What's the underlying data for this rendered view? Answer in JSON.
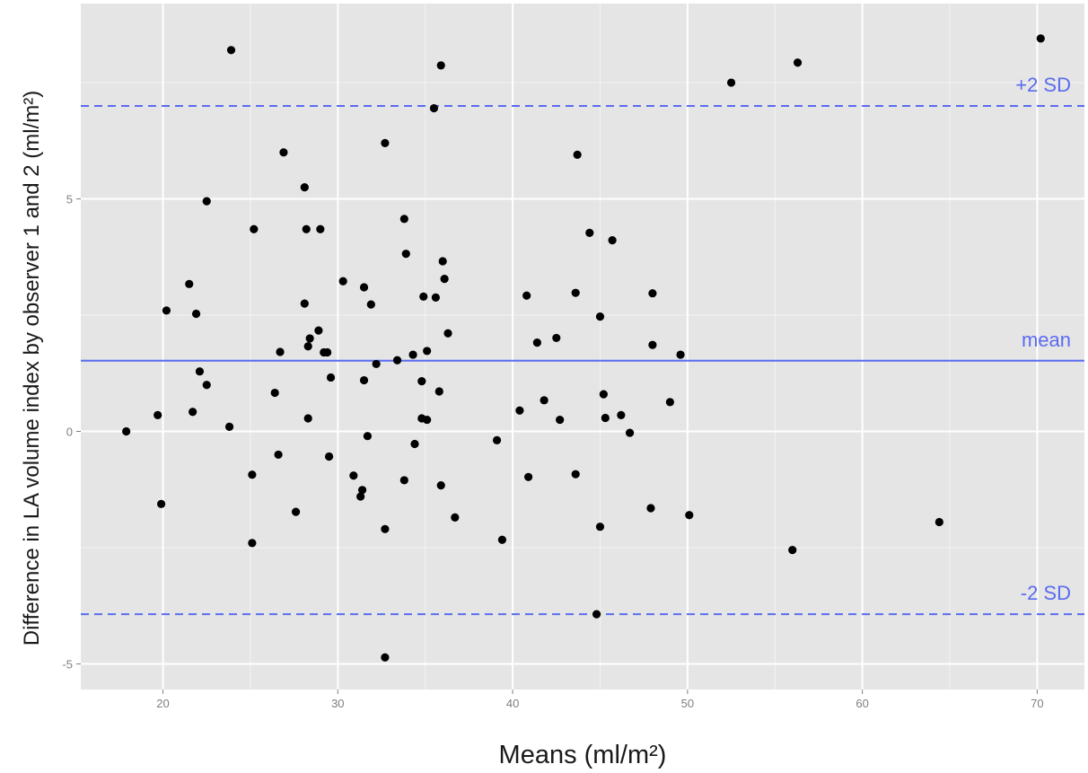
{
  "colors": {
    "panel": "#e5e5e5",
    "grid": "#ffffff",
    "points": "#000000",
    "reference": "#5a6cf0",
    "tick_text": "#7f7f7f",
    "axis_text": "#1a1a1a"
  },
  "chart_data": {
    "type": "scatter",
    "title": "",
    "xlabel": "Means (ml/m²)",
    "ylabel": "Difference in LA volume index by observer 1 and 2 (ml/m²)",
    "xlim": [
      15.3,
      72.7
    ],
    "ylim": [
      -5.55,
      9.2
    ],
    "x_ticks": [
      20,
      30,
      40,
      50,
      60,
      70
    ],
    "y_ticks": [
      5,
      0,
      -5
    ],
    "grid": true,
    "reference_lines": [
      {
        "label": "+2 SD",
        "value": 7.0,
        "style": "dashed"
      },
      {
        "label": "mean",
        "value": 1.52,
        "style": "solid"
      },
      {
        "label": "-2 SD",
        "value": -3.93,
        "style": "dashed"
      }
    ],
    "points": [
      [
        17.9,
        0.0
      ],
      [
        19.7,
        0.35
      ],
      [
        19.9,
        -1.56
      ],
      [
        20.2,
        2.6
      ],
      [
        21.5,
        3.17
      ],
      [
        21.7,
        0.42
      ],
      [
        21.9,
        2.53
      ],
      [
        22.1,
        1.29
      ],
      [
        22.5,
        1.0
      ],
      [
        22.5,
        4.95
      ],
      [
        23.8,
        0.1
      ],
      [
        23.9,
        8.2
      ],
      [
        25.1,
        -0.93
      ],
      [
        25.1,
        -2.4
      ],
      [
        25.2,
        4.35
      ],
      [
        26.4,
        0.83
      ],
      [
        26.6,
        -0.5
      ],
      [
        26.7,
        1.71
      ],
      [
        26.9,
        6.0
      ],
      [
        27.6,
        -1.73
      ],
      [
        28.1,
        5.25
      ],
      [
        28.1,
        2.75
      ],
      [
        28.2,
        4.35
      ],
      [
        28.3,
        0.28
      ],
      [
        28.3,
        1.83
      ],
      [
        28.4,
        2.0
      ],
      [
        28.9,
        2.17
      ],
      [
        29.0,
        4.35
      ],
      [
        29.2,
        1.7
      ],
      [
        29.4,
        1.7
      ],
      [
        29.5,
        -0.54
      ],
      [
        29.6,
        1.16
      ],
      [
        30.3,
        3.23
      ],
      [
        30.9,
        -0.95
      ],
      [
        31.3,
        -1.4
      ],
      [
        31.4,
        -1.26
      ],
      [
        31.5,
        3.1
      ],
      [
        31.5,
        1.1
      ],
      [
        31.7,
        -0.1
      ],
      [
        31.9,
        2.73
      ],
      [
        32.2,
        1.45
      ],
      [
        32.7,
        6.2
      ],
      [
        32.7,
        -2.1
      ],
      [
        32.7,
        -4.86
      ],
      [
        33.4,
        1.53
      ],
      [
        33.8,
        -1.05
      ],
      [
        33.8,
        4.57
      ],
      [
        33.9,
        3.82
      ],
      [
        34.3,
        1.65
      ],
      [
        34.4,
        -0.27
      ],
      [
        34.8,
        0.28
      ],
      [
        34.8,
        1.08
      ],
      [
        34.9,
        2.9
      ],
      [
        35.1,
        0.25
      ],
      [
        35.1,
        1.73
      ],
      [
        35.5,
        6.95
      ],
      [
        35.6,
        2.88
      ],
      [
        35.8,
        0.86
      ],
      [
        35.9,
        7.87
      ],
      [
        35.9,
        -1.16
      ],
      [
        36.0,
        3.66
      ],
      [
        36.1,
        3.28
      ],
      [
        36.3,
        2.11
      ],
      [
        36.7,
        -1.85
      ],
      [
        39.1,
        -0.19
      ],
      [
        39.4,
        -2.33
      ],
      [
        40.4,
        0.45
      ],
      [
        40.8,
        2.92
      ],
      [
        40.9,
        -0.98
      ],
      [
        41.4,
        1.91
      ],
      [
        41.8,
        0.67
      ],
      [
        42.5,
        2.01
      ],
      [
        42.7,
        0.25
      ],
      [
        43.6,
        2.98
      ],
      [
        43.6,
        -0.92
      ],
      [
        43.7,
        5.95
      ],
      [
        44.4,
        4.27
      ],
      [
        44.8,
        -3.93
      ],
      [
        45.0,
        2.47
      ],
      [
        45.0,
        -2.05
      ],
      [
        45.2,
        0.8
      ],
      [
        45.3,
        0.29
      ],
      [
        45.7,
        4.11
      ],
      [
        46.2,
        0.35
      ],
      [
        46.7,
        -0.03
      ],
      [
        47.9,
        -1.65
      ],
      [
        48.0,
        1.86
      ],
      [
        48.0,
        2.97
      ],
      [
        49.0,
        0.63
      ],
      [
        49.6,
        1.65
      ],
      [
        50.1,
        -1.8
      ],
      [
        52.5,
        7.5
      ],
      [
        56.0,
        -2.55
      ],
      [
        56.3,
        7.93
      ],
      [
        64.4,
        -1.95
      ],
      [
        70.2,
        8.45
      ]
    ]
  }
}
